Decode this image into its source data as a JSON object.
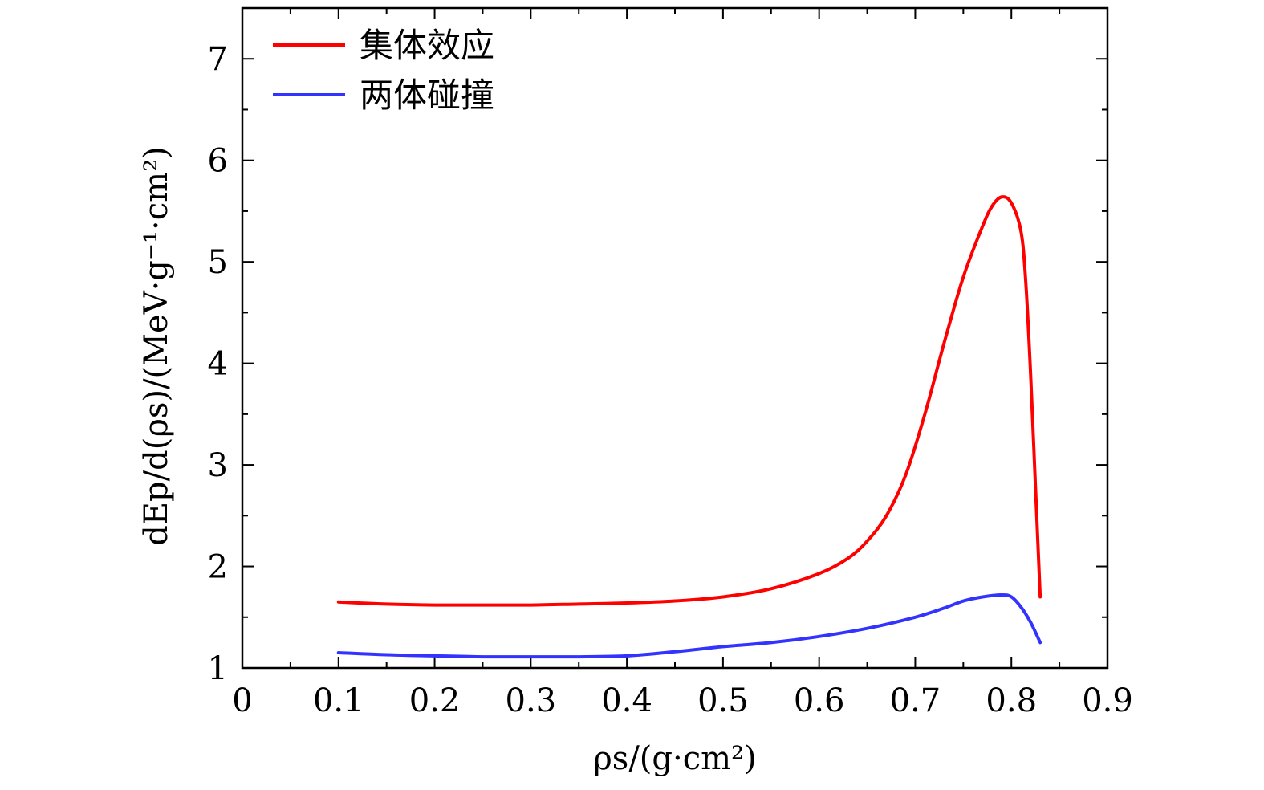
{
  "chart_data": {
    "type": "line",
    "xlabel": "ρs/(g·cm²)",
    "ylabel": "dEp/d(ρs)/(MeV·g⁻¹·cm²)",
    "xlim": [
      0,
      0.9
    ],
    "ylim": [
      1,
      7.5
    ],
    "x_ticks": [
      "0",
      "0.1",
      "0.2",
      "0.3",
      "0.4",
      "0.5",
      "0.6",
      "0.7",
      "0.8",
      "0.9"
    ],
    "y_ticks": [
      "1",
      "2",
      "3",
      "4",
      "5",
      "6",
      "7"
    ],
    "legend_position": "top-left",
    "grid": false,
    "series": [
      {
        "name": "集体效应",
        "color": "#ff0000",
        "points": [
          [
            0.1,
            1.65
          ],
          [
            0.15,
            1.63
          ],
          [
            0.2,
            1.62
          ],
          [
            0.25,
            1.62
          ],
          [
            0.3,
            1.62
          ],
          [
            0.35,
            1.63
          ],
          [
            0.4,
            1.64
          ],
          [
            0.45,
            1.66
          ],
          [
            0.5,
            1.7
          ],
          [
            0.55,
            1.78
          ],
          [
            0.6,
            1.93
          ],
          [
            0.63,
            2.08
          ],
          [
            0.65,
            2.25
          ],
          [
            0.67,
            2.5
          ],
          [
            0.69,
            2.9
          ],
          [
            0.71,
            3.5
          ],
          [
            0.73,
            4.2
          ],
          [
            0.75,
            4.85
          ],
          [
            0.77,
            5.35
          ],
          [
            0.78,
            5.55
          ],
          [
            0.79,
            5.64
          ],
          [
            0.8,
            5.58
          ],
          [
            0.81,
            5.3
          ],
          [
            0.815,
            4.8
          ],
          [
            0.82,
            3.9
          ],
          [
            0.825,
            2.8
          ],
          [
            0.83,
            1.7
          ]
        ]
      },
      {
        "name": "两体碰撞",
        "color": "#3333ff",
        "points": [
          [
            0.1,
            1.15
          ],
          [
            0.15,
            1.13
          ],
          [
            0.2,
            1.12
          ],
          [
            0.25,
            1.11
          ],
          [
            0.3,
            1.11
          ],
          [
            0.35,
            1.11
          ],
          [
            0.4,
            1.12
          ],
          [
            0.45,
            1.16
          ],
          [
            0.5,
            1.21
          ],
          [
            0.55,
            1.25
          ],
          [
            0.6,
            1.31
          ],
          [
            0.65,
            1.39
          ],
          [
            0.7,
            1.5
          ],
          [
            0.73,
            1.59
          ],
          [
            0.75,
            1.66
          ],
          [
            0.77,
            1.7
          ],
          [
            0.79,
            1.72
          ],
          [
            0.8,
            1.7
          ],
          [
            0.81,
            1.6
          ],
          [
            0.82,
            1.45
          ],
          [
            0.83,
            1.25
          ]
        ]
      }
    ]
  }
}
